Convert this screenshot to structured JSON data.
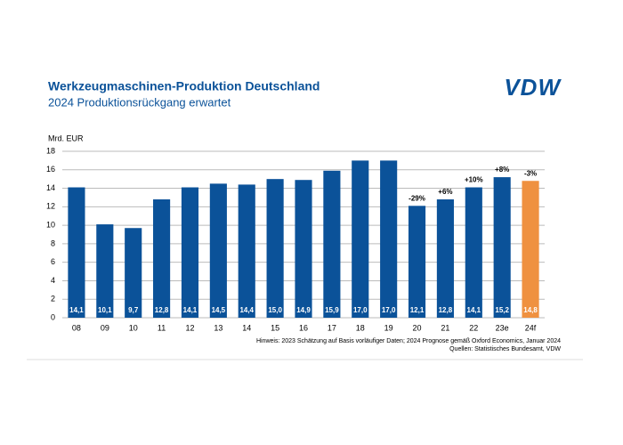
{
  "chart_data": {
    "type": "bar",
    "logo": "VDW",
    "title": "Werkzeugmaschinen-Produktion Deutschland",
    "subtitle": "2024 Produktionsrückgang erwartet",
    "y_axis_label": "Mrd. EUR",
    "categories": [
      "08",
      "09",
      "10",
      "11",
      "12",
      "13",
      "14",
      "15",
      "16",
      "17",
      "18",
      "19",
      "20",
      "21",
      "22",
      "23e",
      "24f"
    ],
    "values": [
      14.1,
      10.1,
      9.7,
      12.8,
      14.1,
      14.5,
      14.4,
      15.0,
      14.9,
      15.9,
      17.0,
      17.0,
      12.1,
      12.8,
      14.1,
      15.2,
      14.8
    ],
    "value_labels": [
      "14,1",
      "10,1",
      "9,7",
      "12,8",
      "14,1",
      "14,5",
      "14,4",
      "15,0",
      "14,9",
      "15,9",
      "17,0",
      "17,0",
      "12,1",
      "12,8",
      "14,1",
      "15,2",
      "14,8"
    ],
    "colors": [
      "#0b5299",
      "#0b5299",
      "#0b5299",
      "#0b5299",
      "#0b5299",
      "#0b5299",
      "#0b5299",
      "#0b5299",
      "#0b5299",
      "#0b5299",
      "#0b5299",
      "#0b5299",
      "#0b5299",
      "#0b5299",
      "#0b5299",
      "#0b5299",
      "#ef9140"
    ],
    "annotations": [
      {
        "category": "20",
        "text": "-29%"
      },
      {
        "category": "21",
        "text": "+6%"
      },
      {
        "category": "22",
        "text": "+10%"
      },
      {
        "category": "23e",
        "text": "+8%"
      },
      {
        "category": "24f",
        "text": "-3%"
      }
    ],
    "ylim": [
      0,
      18
    ],
    "yticks": [
      0,
      2,
      4,
      6,
      8,
      10,
      12,
      14,
      16,
      18
    ],
    "grid": true,
    "notes": [
      "Hinweis: 2023 Schätzung auf Basis vorläufiger Daten; 2024 Prognose gemäß Oxford Economics, Januar 2024",
      "Quellen: Statistisches Bundesamt, VDW"
    ]
  }
}
